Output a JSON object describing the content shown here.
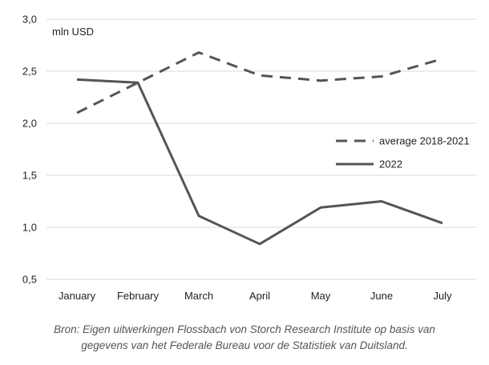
{
  "chart_data": {
    "type": "line",
    "unit_label": "mln USD",
    "categories": [
      "January",
      "February",
      "March",
      "April",
      "May",
      "June",
      "July"
    ],
    "ylim": [
      0.5,
      3.0
    ],
    "yticks": [
      "0,5",
      "1,0",
      "1,5",
      "2,0",
      "2,5",
      "3,0"
    ],
    "ytick_values": [
      0.5,
      1.0,
      1.5,
      2.0,
      2.5,
      3.0
    ],
    "grid": true,
    "legend_position": "right",
    "series": [
      {
        "name": "average 2018-2021",
        "style": "dashed",
        "color": "#555555",
        "values": [
          2.1,
          2.39,
          2.68,
          2.46,
          2.41,
          2.45,
          2.62
        ]
      },
      {
        "name": "2022",
        "style": "solid",
        "color": "#555555",
        "values": [
          2.42,
          2.39,
          1.11,
          0.84,
          1.19,
          1.25,
          1.04
        ]
      }
    ]
  },
  "source_note": {
    "line1": "Bron: Eigen uitwerkingen Flossbach von Storch Research Institute op basis van",
    "line2": "gegevens van het Federale Bureau voor de Statistiek van Duitsland."
  }
}
